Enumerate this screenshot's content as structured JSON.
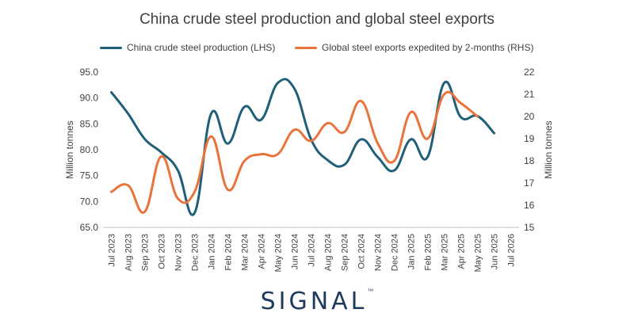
{
  "chart_data": {
    "type": "line",
    "title": "China crude steel production and global steel exports",
    "ylabel_left": "Million tonnes",
    "ylabel_right": "Million tonnes",
    "ylim_left": [
      65.0,
      95.0
    ],
    "ylim_right": [
      15,
      22
    ],
    "yticks_left": [
      "65.0",
      "70.0",
      "75.0",
      "80.0",
      "85.0",
      "90.0",
      "95.0"
    ],
    "yticks_right": [
      "15",
      "16",
      "17",
      "18",
      "19",
      "20",
      "21",
      "22"
    ],
    "categories": [
      "Jul 2023",
      "Aug 2023",
      "Sep 2023",
      "Oct 2023",
      "Nov 2023",
      "Dec 2023",
      "Jan 2024",
      "Feb 2024",
      "Mar 2024",
      "Apr 2024",
      "May 2024",
      "Jun 2024",
      "Jul 2024",
      "Aug 2024",
      "Sep 2024",
      "Oct 2024",
      "Nov 2024",
      "Dec 2024",
      "Jan 2025",
      "Feb 2025",
      "Mar 2025",
      "Apr 2025",
      "May 2025",
      "Jun 2025",
      "Jul 2026"
    ],
    "legend_position": "top",
    "grid": false,
    "series": [
      {
        "name": "China crude steel production (LHS)",
        "axis": "left",
        "color": "#1f5f7a",
        "values": [
          91.1,
          87.0,
          82.1,
          79.5,
          76.0,
          67.8,
          87.0,
          81.2,
          88.3,
          85.8,
          92.9,
          91.8,
          82.0,
          78.0,
          77.1,
          82.0,
          78.6,
          76.0,
          82.0,
          78.6,
          92.9,
          86.3,
          86.5,
          83.2,
          null
        ]
      },
      {
        "name": "Global steel exports expedited by 2-months (RHS)",
        "axis": "right",
        "color": "#e8743b",
        "values": [
          16.6,
          16.9,
          15.7,
          18.2,
          16.3,
          16.6,
          19.1,
          16.7,
          18.0,
          18.3,
          18.3,
          19.4,
          18.9,
          19.7,
          19.3,
          20.7,
          18.8,
          18.0,
          20.2,
          19.0,
          21.0,
          20.6,
          20.0,
          null,
          null
        ]
      }
    ]
  },
  "logo": {
    "text": "SIGNAL",
    "mark": "™"
  }
}
